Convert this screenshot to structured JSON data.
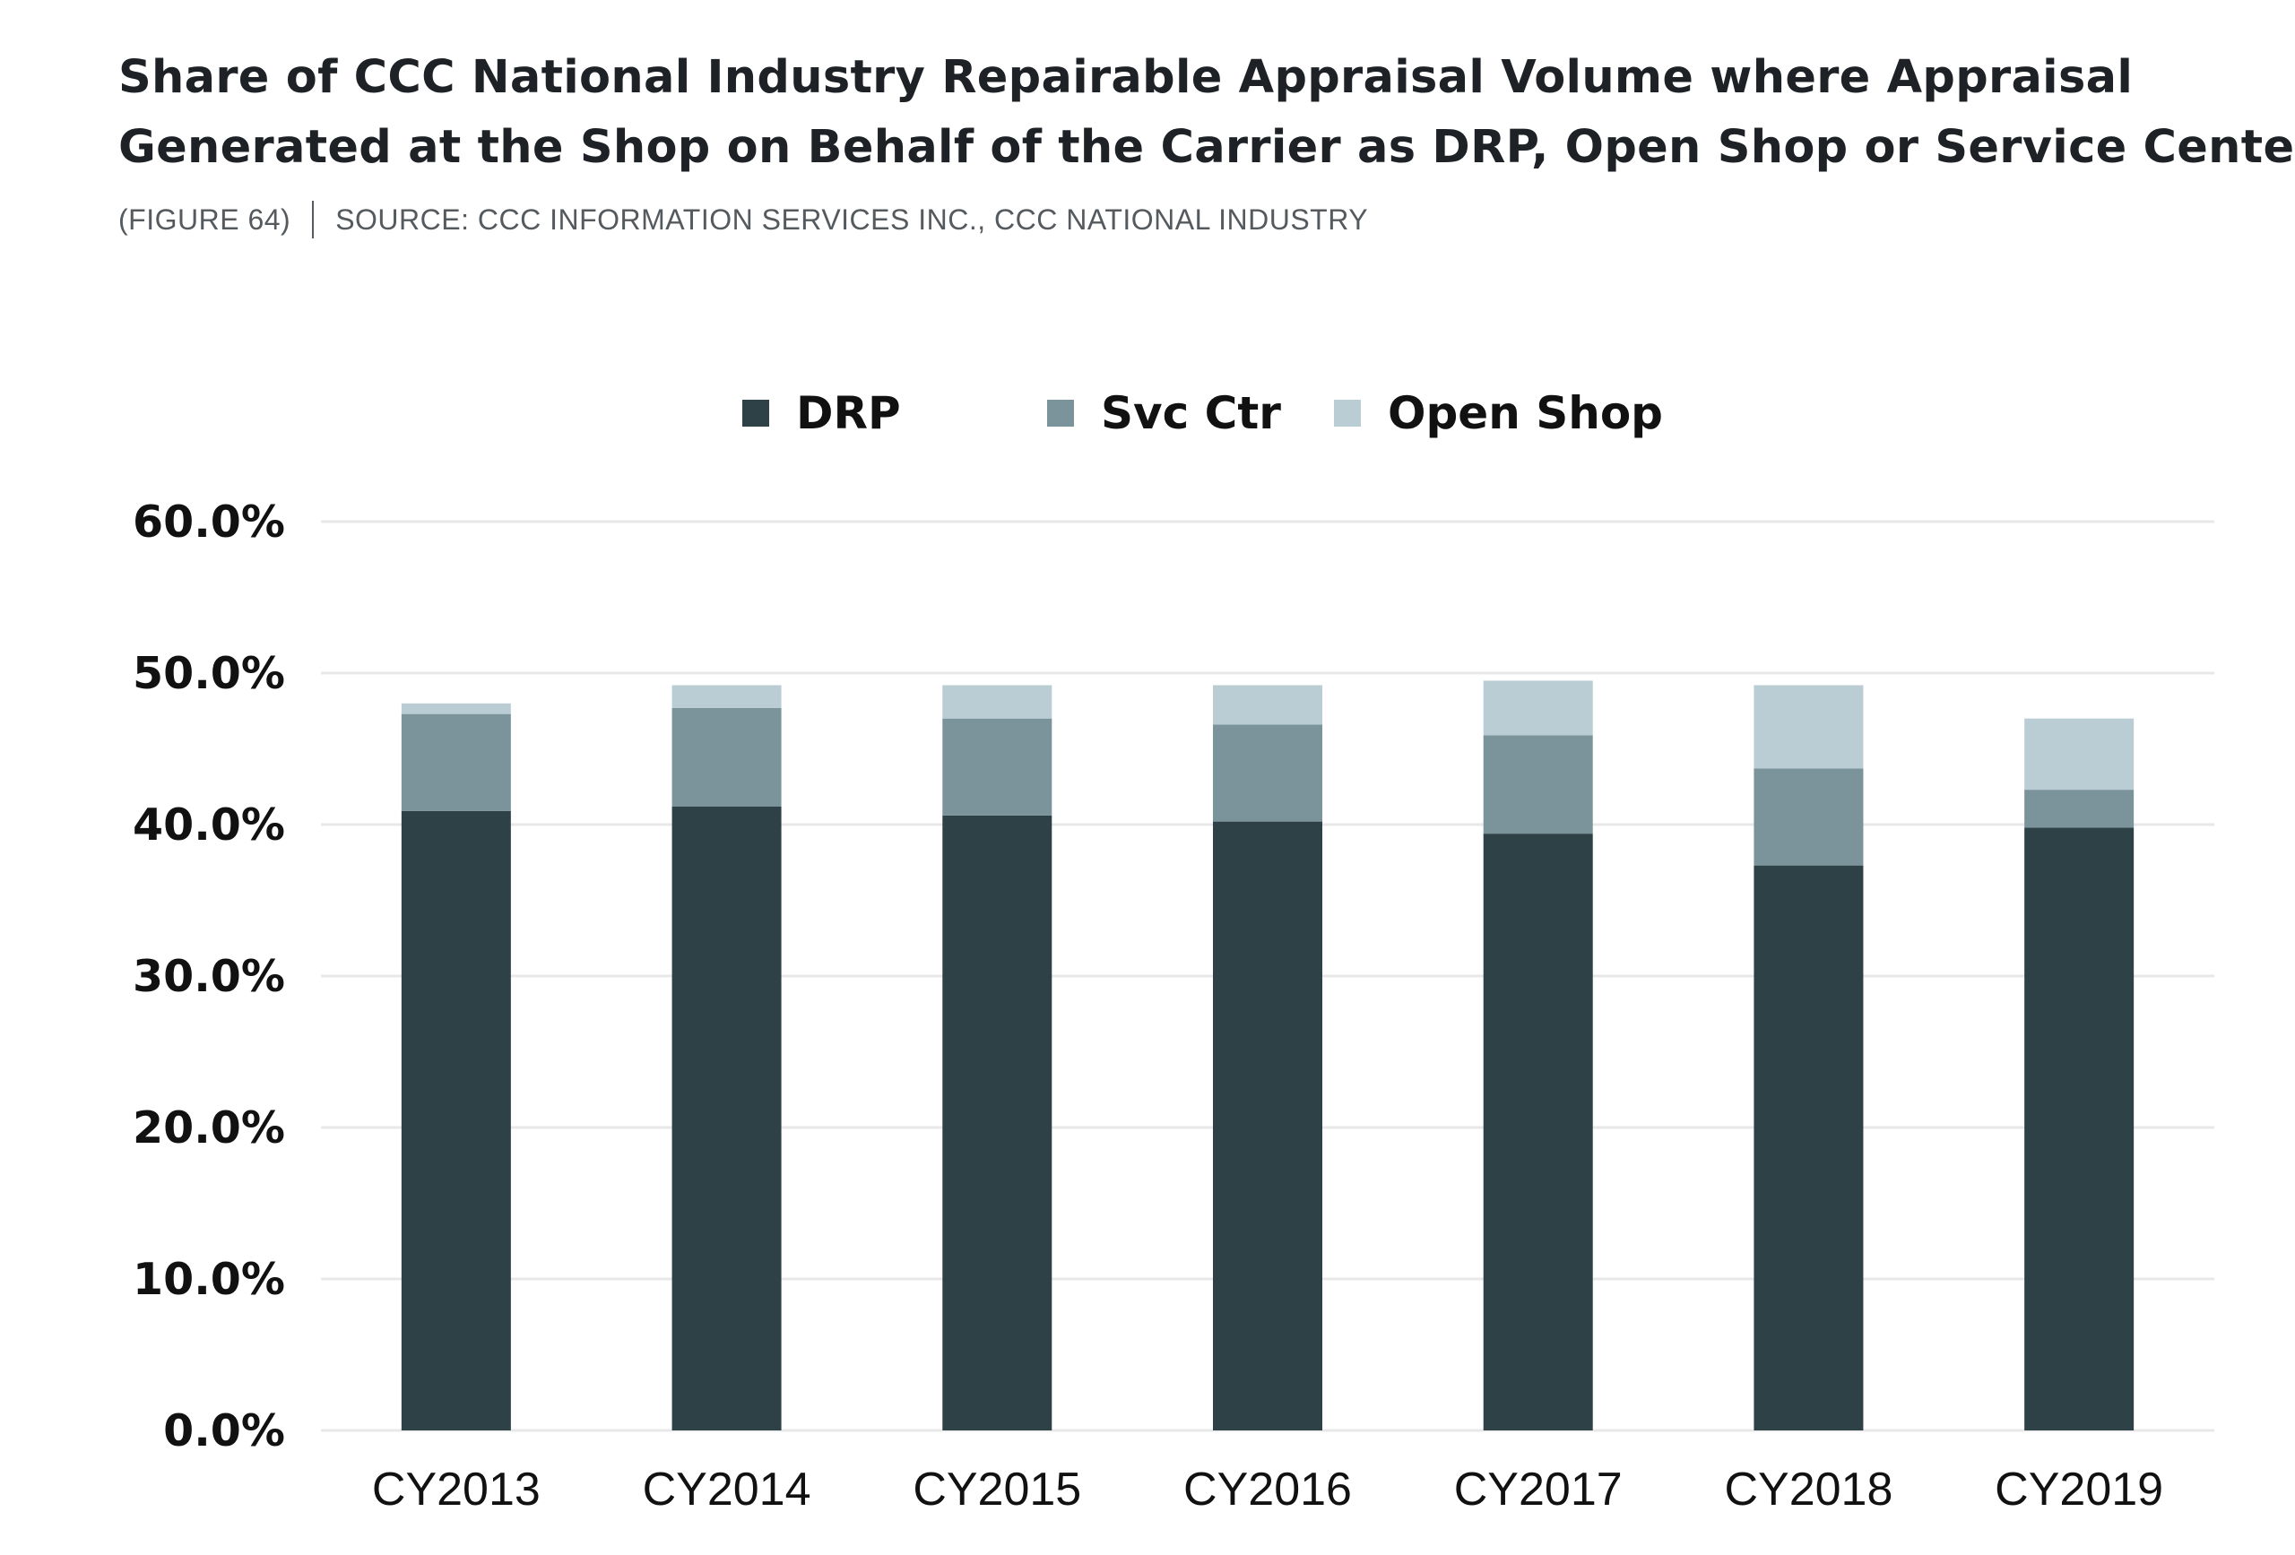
{
  "title_lines": [
    "Share of CCC National Industry Repairable Appraisal Volume where Appraisal",
    "Generated at the Shop on Behalf of the Carrier as DRP, Open Shop or Service Center"
  ],
  "figure_label": "(FIGURE 64)",
  "source": "SOURCE: CCC INFORMATION SERVICES INC., CCC NATIONAL INDUSTRY",
  "chart_data": {
    "type": "bar",
    "stacked": true,
    "categories": [
      "CY2013",
      "CY2014",
      "CY2015",
      "CY2016",
      "CY2017",
      "CY2018",
      "CY2019"
    ],
    "series": [
      {
        "name": "DRP",
        "color": "#2e4147",
        "values": [
          40.9,
          41.2,
          40.6,
          40.2,
          39.4,
          37.3,
          39.8
        ]
      },
      {
        "name": "Svc Ctr",
        "color": "#7b939a",
        "values": [
          6.4,
          6.5,
          6.4,
          6.4,
          6.5,
          6.4,
          2.5
        ]
      },
      {
        "name": "Open Shop",
        "color": "#bacdd5",
        "values": [
          0.7,
          1.5,
          2.2,
          2.6,
          3.6,
          5.5,
          4.7
        ]
      }
    ],
    "ylim": [
      0,
      60
    ],
    "yticks": [
      "0.0%",
      "10.0%",
      "20.0%",
      "30.0%",
      "40.0%",
      "50.0%",
      "60.0%"
    ],
    "ytick_values": [
      0,
      10,
      20,
      30,
      40,
      50,
      60
    ],
    "grid": true,
    "legend_position": "top-center"
  }
}
